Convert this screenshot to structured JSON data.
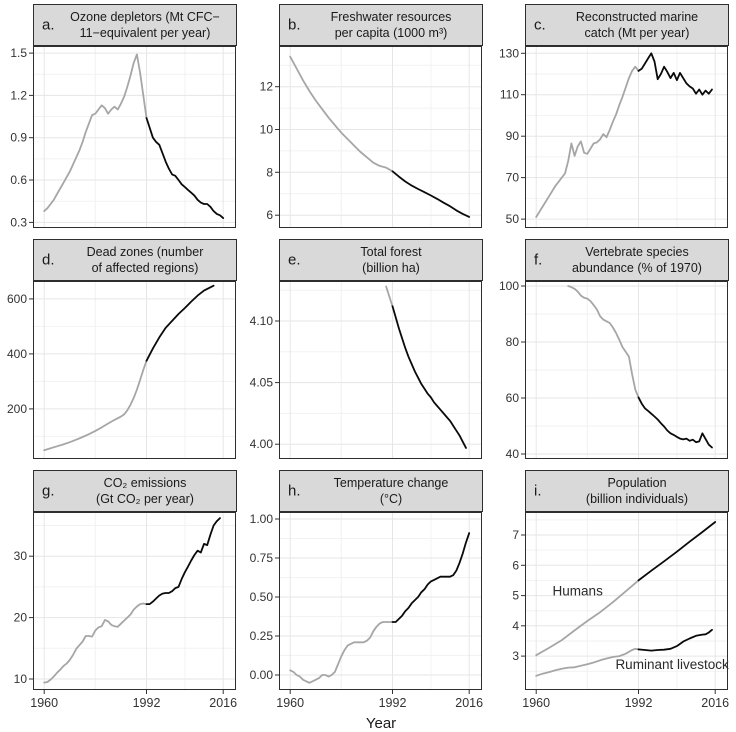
{
  "figure": {
    "xlabel": "Year",
    "x_ticks": [
      1960,
      1992,
      2016
    ],
    "x_tick_labels": [
      "1960",
      "1992",
      "2016"
    ],
    "xlim": [
      1956.5,
      2020
    ],
    "split_year": 1992
  },
  "colors": {
    "pre_1992_line": "#a6a6a6",
    "post_1992_line": "#0a0a0a",
    "grid_major": "#e6e6e6",
    "grid_minor": "#f2f2f2",
    "panel_border": "#2e2e2e",
    "header_fill": "#d9d9d9",
    "tick_mark": "#333333",
    "tick_label": "#333333",
    "annotation_text": "#2b2b2b"
  },
  "chart_data": [
    {
      "letter": "a.",
      "title": "Ozone depletors (Mt CFC−\n11−equivalent per year)",
      "type": "line",
      "ylim": [
        0.26,
        1.55
      ],
      "ytick_values": [
        0.3,
        0.6,
        0.9,
        1.2,
        1.5
      ],
      "ytick_labels": [
        "0.3",
        "0.6",
        "0.9",
        "1.2",
        "1.5"
      ],
      "series": [
        {
          "name": "ozone depletors",
          "x_start": 1960,
          "x_step": 1,
          "y": [
            0.38,
            0.4,
            0.43,
            0.46,
            0.5,
            0.54,
            0.58,
            0.62,
            0.66,
            0.71,
            0.76,
            0.81,
            0.87,
            0.94,
            1.0,
            1.06,
            1.07,
            1.1,
            1.13,
            1.11,
            1.07,
            1.1,
            1.12,
            1.1,
            1.14,
            1.19,
            1.26,
            1.34,
            1.43,
            1.49,
            1.36,
            1.2,
            1.04,
            0.97,
            0.9,
            0.87,
            0.85,
            0.79,
            0.73,
            0.68,
            0.64,
            0.63,
            0.6,
            0.57,
            0.55,
            0.53,
            0.51,
            0.49,
            0.46,
            0.44,
            0.43,
            0.43,
            0.41,
            0.38,
            0.36,
            0.35,
            0.33
          ]
        }
      ],
      "annotations": []
    },
    {
      "letter": "b.",
      "title": "Freshwater resources\nper capita (1000 m³)",
      "type": "line",
      "ylim": [
        5.4,
        13.9
      ],
      "ytick_values": [
        6,
        8,
        10,
        12
      ],
      "ytick_labels": [
        "6",
        "8",
        "10",
        "12"
      ],
      "series": [
        {
          "name": "freshwater per capita",
          "x_start": 1960,
          "x_step": 2,
          "y": [
            13.4,
            12.85,
            12.3,
            11.8,
            11.35,
            10.95,
            10.55,
            10.2,
            9.85,
            9.55,
            9.25,
            8.95,
            8.7,
            8.45,
            8.3,
            8.22,
            8.05,
            7.8,
            7.57,
            7.38,
            7.22,
            7.07,
            6.92,
            6.76,
            6.58,
            6.42,
            6.22,
            6.06,
            5.92
          ]
        }
      ],
      "annotations": []
    },
    {
      "letter": "c.",
      "title": "Reconstructed marine\ncatch (Mt per year)",
      "type": "line",
      "ylim": [
        45.7,
        133.5
      ],
      "ytick_values": [
        50,
        70,
        90,
        110,
        130
      ],
      "ytick_labels": [
        "50",
        "70",
        "90",
        "110",
        "130"
      ],
      "series": [
        {
          "name": "marine catch",
          "x_start": 1960,
          "x_step": 1,
          "y": [
            51,
            53.5,
            56,
            58.5,
            61,
            63.5,
            66,
            68,
            70,
            72,
            78,
            86.5,
            80.5,
            85,
            87.5,
            82,
            81.5,
            84,
            86.5,
            87,
            88.5,
            91,
            89.5,
            93,
            97,
            100.5,
            105,
            109,
            113.5,
            118,
            121.5,
            123.5,
            121.5,
            122.5,
            125,
            127.5,
            130,
            126,
            117.5,
            120,
            123.5,
            121,
            118,
            120.5,
            117,
            120.5,
            118,
            115.5,
            114,
            113,
            110.5,
            112.5,
            110,
            112,
            110.5,
            112.5
          ]
        }
      ],
      "annotations": []
    },
    {
      "letter": "d.",
      "title": "Dead zones (number\nof affected regions)",
      "type": "line",
      "ylim": [
        18,
        665
      ],
      "ytick_values": [
        200,
        400,
        600
      ],
      "ytick_labels": [
        "200",
        "400",
        "600"
      ],
      "series": [
        {
          "name": "dead zones",
          "x": [
            1960,
            1962,
            1964,
            1966,
            1968,
            1970,
            1972,
            1974,
            1976,
            1978,
            1980,
            1982,
            1984,
            1985,
            1986,
            1987,
            1988,
            1989,
            1990,
            1991,
            1992,
            1994,
            1996,
            1998,
            2000,
            2002,
            2004,
            2006,
            2008,
            2010,
            2012,
            2013
          ],
          "y": [
            50,
            57,
            64,
            71,
            79,
            88,
            98,
            108,
            120,
            133,
            147,
            160,
            172,
            180,
            195,
            215,
            240,
            270,
            305,
            342,
            375,
            420,
            460,
            495,
            520,
            545,
            567,
            590,
            612,
            630,
            642,
            648
          ]
        }
      ],
      "annotations": []
    },
    {
      "letter": "e.",
      "title": "Total forest\n(billion ha)",
      "type": "line",
      "ylim": [
        3.988,
        4.1325
      ],
      "ytick_values": [
        4.0,
        4.05,
        4.1
      ],
      "ytick_labels": [
        "4.00",
        "4.05",
        "4.10"
      ],
      "series": [
        {
          "name": "total forest",
          "x_start": 1990,
          "x_step": 1,
          "y": [
            4.128,
            4.12,
            4.112,
            4.103,
            4.094,
            4.086,
            4.078,
            4.071,
            4.065,
            4.059,
            4.054,
            4.049,
            4.045,
            4.041,
            4.038,
            4.034,
            4.031,
            4.028,
            4.025,
            4.022,
            4.019,
            4.015,
            4.011,
            4.007,
            4.002,
            3.997
          ]
        }
      ],
      "annotations": []
    },
    {
      "letter": "f.",
      "title": "Vertebrate species\nabundance (% of 1970)",
      "type": "line",
      "ylim": [
        38.2,
        101.8
      ],
      "ytick_values": [
        40,
        60,
        80,
        100
      ],
      "ytick_labels": [
        "40",
        "60",
        "80",
        "100"
      ],
      "series": [
        {
          "name": "vertebrate abundance",
          "x_start": 1970,
          "x_step": 1,
          "y": [
            100,
            99.6,
            99,
            98,
            96.6,
            95.8,
            95.5,
            94.6,
            93.2,
            91.6,
            89.2,
            88,
            87.4,
            86.8,
            85.2,
            83.2,
            80.8,
            78.2,
            76.5,
            74.8,
            68.5,
            63,
            60.2,
            58,
            56.3,
            55.4,
            54.4,
            53.4,
            52.3,
            51,
            49.8,
            48.4,
            47.4,
            46.8,
            46.1,
            45.5,
            45.2,
            45.5,
            44.7,
            45.1,
            44.2,
            44.5,
            47.4,
            45.3,
            43.3,
            42.3
          ]
        }
      ],
      "annotations": []
    },
    {
      "letter": "g.",
      "title": "CO₂ emissions\n(Gt CO₂ per year)",
      "type": "line",
      "ylim": [
        8.2,
        37.2
      ],
      "ytick_values": [
        10,
        20,
        30
      ],
      "ytick_labels": [
        "10",
        "20",
        "30"
      ],
      "series": [
        {
          "name": "co2 emissions",
          "x_start": 1960,
          "x_step": 1,
          "y": [
            9.4,
            9.5,
            9.9,
            10.4,
            11.0,
            11.5,
            12.1,
            12.5,
            13.1,
            13.9,
            14.9,
            15.5,
            16.1,
            17.0,
            17.0,
            16.9,
            17.9,
            18.4,
            18.6,
            19.6,
            19.4,
            18.8,
            18.6,
            18.5,
            19.0,
            19.5,
            20.0,
            20.5,
            21.3,
            21.8,
            22.2,
            22.3,
            22.2,
            22.2,
            22.6,
            23.1,
            23.6,
            23.9,
            24.0,
            24.0,
            24.3,
            24.8,
            25.0,
            26.3,
            27.4,
            28.3,
            29.3,
            30.2,
            30.9,
            30.6,
            32.0,
            31.8,
            33.5,
            35.0,
            35.7,
            36.2
          ]
        }
      ],
      "annotations": []
    },
    {
      "letter": "h.",
      "title": "Temperature change\n(°C)",
      "type": "line",
      "ylim": [
        -0.096,
        1.045
      ],
      "ytick_values": [
        0.0,
        0.25,
        0.5,
        0.75,
        1.0
      ],
      "ytick_labels": [
        "0.00",
        "0.25",
        "0.50",
        "0.75",
        "1.00"
      ],
      "series": [
        {
          "name": "temperature change",
          "x_start": 1960,
          "x_step": 1,
          "y": [
            0.03,
            0.02,
            0.0,
            -0.01,
            -0.03,
            -0.04,
            -0.05,
            -0.04,
            -0.03,
            -0.02,
            0.0,
            0.0,
            -0.01,
            0.0,
            0.02,
            0.07,
            0.12,
            0.16,
            0.19,
            0.2,
            0.21,
            0.21,
            0.21,
            0.21,
            0.22,
            0.24,
            0.28,
            0.31,
            0.33,
            0.34,
            0.34,
            0.34,
            0.34,
            0.34,
            0.36,
            0.38,
            0.41,
            0.43,
            0.46,
            0.48,
            0.5,
            0.53,
            0.55,
            0.58,
            0.6,
            0.61,
            0.62,
            0.63,
            0.63,
            0.63,
            0.63,
            0.64,
            0.67,
            0.72,
            0.78,
            0.85,
            0.91
          ]
        }
      ],
      "annotations": []
    },
    {
      "letter": "i.",
      "title": "Population\n(billion individuals)",
      "type": "line",
      "ylim": [
        1.88,
        7.76
      ],
      "ytick_values": [
        3,
        4,
        5,
        6,
        7
      ],
      "ytick_labels": [
        "3",
        "4",
        "5",
        "6",
        "7"
      ],
      "series": [
        {
          "name": "Humans",
          "x_start": 1960,
          "x_step": 4,
          "y": [
            3.03,
            3.27,
            3.53,
            3.85,
            4.16,
            4.45,
            4.78,
            5.14,
            5.5,
            5.82,
            6.13,
            6.45,
            6.78,
            7.1,
            7.43
          ]
        },
        {
          "name": "Ruminant livestock",
          "x": [
            1960,
            1962,
            1964,
            1966,
            1968,
            1970,
            1972,
            1974,
            1976,
            1978,
            1980,
            1982,
            1984,
            1986,
            1988,
            1990,
            1991,
            1992,
            1994,
            1996,
            1998,
            2000,
            2002,
            2004,
            2006,
            2008,
            2010,
            2012,
            2013,
            2014,
            2015
          ],
          "y": [
            2.35,
            2.42,
            2.47,
            2.53,
            2.58,
            2.62,
            2.63,
            2.68,
            2.73,
            2.79,
            2.86,
            2.92,
            2.97,
            3.0,
            3.08,
            3.2,
            3.24,
            3.22,
            3.2,
            3.18,
            3.2,
            3.21,
            3.24,
            3.33,
            3.48,
            3.58,
            3.67,
            3.71,
            3.72,
            3.78,
            3.87
          ]
        }
      ],
      "annotations": [
        {
          "text": "Humans",
          "x": 1973,
          "y": 5.0
        },
        {
          "text": "Ruminant livestock",
          "x": 2002.5,
          "y": 2.58
        }
      ]
    }
  ]
}
